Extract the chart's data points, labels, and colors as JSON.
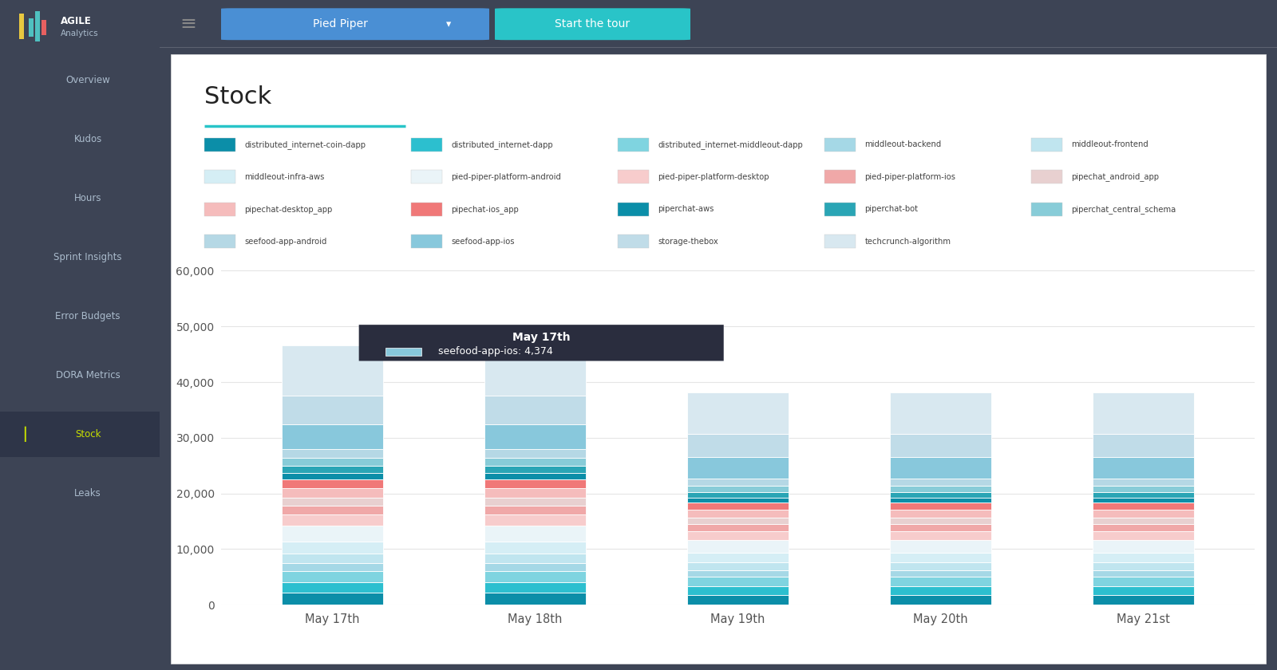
{
  "title": "Stock",
  "categories": [
    "May 17th",
    "May 18th",
    "May 19th",
    "May 20th",
    "May 21st"
  ],
  "series": [
    {
      "name": "distributed_internet-coin-dapp",
      "color": "#0b8ea8",
      "values": [
        2200,
        2200,
        1800,
        1800,
        1800
      ]
    },
    {
      "name": "distributed_internet-dapp",
      "color": "#2cbfcf",
      "values": [
        1800,
        1800,
        1500,
        1500,
        1500
      ]
    },
    {
      "name": "distributed_internet-middleout-dapp",
      "color": "#7fd4e0",
      "values": [
        2000,
        2000,
        1700,
        1700,
        1700
      ]
    },
    {
      "name": "middleout-backend",
      "color": "#a5d8e6",
      "values": [
        1500,
        1500,
        1200,
        1200,
        1200
      ]
    },
    {
      "name": "middleout-frontend",
      "color": "#c0e5ef",
      "values": [
        1700,
        1700,
        1400,
        1400,
        1400
      ]
    },
    {
      "name": "middleout-infra-aws",
      "color": "#d5eef5",
      "values": [
        2200,
        2200,
        1800,
        1800,
        1800
      ]
    },
    {
      "name": "pied-piper-platform-android",
      "color": "#eaf4f8",
      "values": [
        2800,
        2800,
        2200,
        2200,
        2200
      ]
    },
    {
      "name": "pied-piper-platform-desktop",
      "color": "#f7cccc",
      "values": [
        2000,
        2000,
        1600,
        1600,
        1600
      ]
    },
    {
      "name": "pied-piper-platform-ios",
      "color": "#f0a8a8",
      "values": [
        1600,
        1600,
        1300,
        1300,
        1300
      ]
    },
    {
      "name": "pipechat_android_app",
      "color": "#e8d0d0",
      "values": [
        1400,
        1400,
        1100,
        1100,
        1100
      ]
    },
    {
      "name": "pipechat-desktop_app",
      "color": "#f5bcbc",
      "values": [
        1800,
        1800,
        1500,
        1500,
        1500
      ]
    },
    {
      "name": "pipechat-ios_app",
      "color": "#f07878",
      "values": [
        1500,
        1500,
        1200,
        1200,
        1200
      ]
    },
    {
      "name": "piperchat-aws",
      "color": "#0b8ea8",
      "values": [
        1100,
        1100,
        900,
        900,
        900
      ]
    },
    {
      "name": "piperchat-bot",
      "color": "#2aa5b5",
      "values": [
        1300,
        1300,
        1000,
        1000,
        1000
      ]
    },
    {
      "name": "piperchat_central_schema",
      "color": "#88ccd8",
      "values": [
        1500,
        1500,
        1200,
        1200,
        1200
      ]
    },
    {
      "name": "seefood-app-android",
      "color": "#b5d8e5",
      "values": [
        1600,
        1600,
        1300,
        1300,
        1300
      ]
    },
    {
      "name": "seefood-app-ios",
      "color": "#88c8dc",
      "values": [
        4374,
        4374,
        3800,
        3800,
        3800
      ]
    },
    {
      "name": "storage-thebox",
      "color": "#c0dce8",
      "values": [
        5200,
        5200,
        4200,
        4200,
        4200
      ]
    },
    {
      "name": "techcrunch-algorithm",
      "color": "#d8e8f0",
      "values": [
        9000,
        9000,
        7400,
        7400,
        7400
      ]
    }
  ],
  "legend": [
    {
      "name": "distributed_internet-coin-dapp",
      "color": "#0b8ea8"
    },
    {
      "name": "distributed_internet-dapp",
      "color": "#2cbfcf"
    },
    {
      "name": "distributed_internet-middleout-dapp",
      "color": "#7fd4e0"
    },
    {
      "name": "middleout-backend",
      "color": "#a5d8e6"
    },
    {
      "name": "middleout-frontend",
      "color": "#c0e5ef"
    },
    {
      "name": "middleout-infra-aws",
      "color": "#d5eef5"
    },
    {
      "name": "pied-piper-platform-android",
      "color": "#eaf4f8"
    },
    {
      "name": "pied-piper-platform-desktop",
      "color": "#f7cccc"
    },
    {
      "name": "pied-piper-platform-ios",
      "color": "#f0a8a8"
    },
    {
      "name": "pipechat_android_app",
      "color": "#e8d0d0"
    },
    {
      "name": "pipechat-desktop_app",
      "color": "#f5bcbc"
    },
    {
      "name": "pipechat-ios_app",
      "color": "#f07878"
    },
    {
      "name": "piperchat-aws",
      "color": "#0b8ea8"
    },
    {
      "name": "piperchat-bot",
      "color": "#2aa5b5"
    },
    {
      "name": "piperchat_central_schema",
      "color": "#88ccd8"
    },
    {
      "name": "seefood-app-android",
      "color": "#b5d8e5"
    },
    {
      "name": "seefood-app-ios",
      "color": "#88c8dc"
    },
    {
      "name": "storage-thebox",
      "color": "#c0dce8"
    },
    {
      "name": "techcrunch-algorithm",
      "color": "#d8e8f0"
    }
  ],
  "tooltip_date": "May 17th",
  "tooltip_label": "seefood-app-ios: 4,374",
  "tooltip_color": "#88c8dc",
  "ylim": [
    0,
    62000
  ],
  "yticks": [
    0,
    10000,
    20000,
    30000,
    40000,
    50000,
    60000
  ],
  "sidebar_color": "#3d4455",
  "sidebar_active_color": "#2e3445",
  "nav_color": "#ffffff",
  "bg_color": "#f5f5f5",
  "chart_bg": "#ffffff",
  "bar_width": 0.5,
  "grid_color": "#e5e5e5",
  "menu_items": [
    "Overview",
    "Kudos",
    "Hours",
    "Sprint Insights",
    "Error Budgets",
    "DORA Metrics",
    "Stock",
    "Leaks"
  ],
  "active_menu": "Stock"
}
